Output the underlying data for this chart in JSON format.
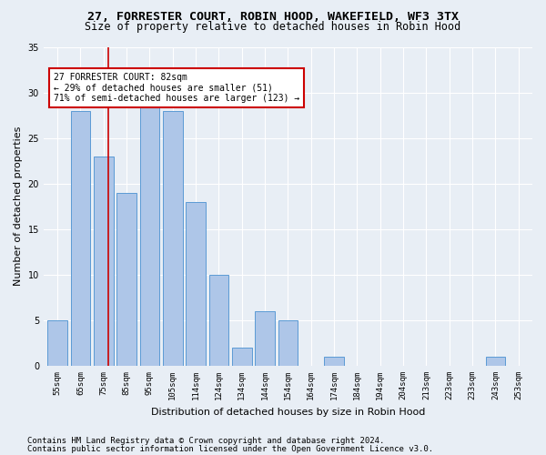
{
  "title": "27, FORRESTER COURT, ROBIN HOOD, WAKEFIELD, WF3 3TX",
  "subtitle": "Size of property relative to detached houses in Robin Hood",
  "xlabel": "Distribution of detached houses by size in Robin Hood",
  "ylabel": "Number of detached properties",
  "footer_line1": "Contains HM Land Registry data © Crown copyright and database right 2024.",
  "footer_line2": "Contains public sector information licensed under the Open Government Licence v3.0.",
  "categories": [
    "55sqm",
    "65sqm",
    "75sqm",
    "85sqm",
    "95sqm",
    "105sqm",
    "114sqm",
    "124sqm",
    "134sqm",
    "144sqm",
    "154sqm",
    "164sqm",
    "174sqm",
    "184sqm",
    "194sqm",
    "204sqm",
    "213sqm",
    "223sqm",
    "233sqm",
    "243sqm",
    "253sqm"
  ],
  "values": [
    5,
    28,
    23,
    19,
    29,
    28,
    18,
    10,
    2,
    6,
    5,
    0,
    1,
    0,
    0,
    0,
    0,
    0,
    0,
    1,
    0
  ],
  "bar_color": "#aec6e8",
  "bar_edge_color": "#5b9bd5",
  "reference_line_color": "#cc0000",
  "annotation_text": "27 FORRESTER COURT: 82sqm\n← 29% of detached houses are smaller (51)\n71% of semi-detached houses are larger (123) →",
  "annotation_box_color": "#ffffff",
  "annotation_box_edge_color": "#cc0000",
  "ylim": [
    0,
    35
  ],
  "yticks": [
    0,
    5,
    10,
    15,
    20,
    25,
    30,
    35
  ],
  "bg_color": "#e8eef5",
  "plot_bg_color": "#e8eef5",
  "grid_color": "#ffffff",
  "title_fontsize": 9.5,
  "subtitle_fontsize": 8.5,
  "xlabel_fontsize": 8,
  "ylabel_fontsize": 8,
  "tick_fontsize": 6.5,
  "annotation_fontsize": 7,
  "footer_fontsize": 6.5
}
